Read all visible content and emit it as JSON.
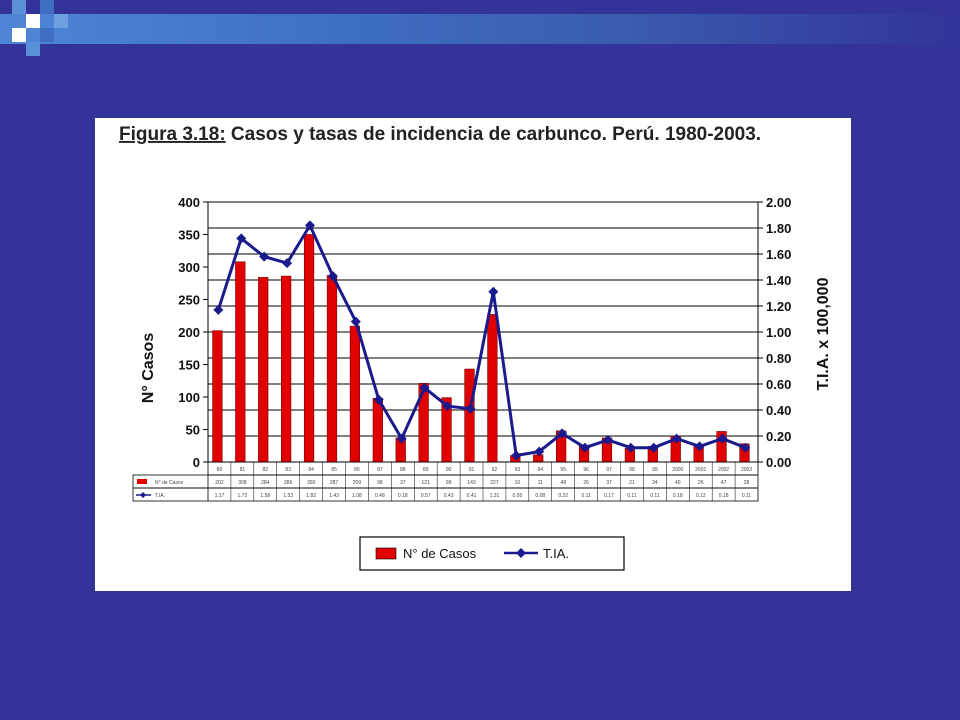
{
  "slide": {
    "background": "#333399",
    "accent": "#4f86d6"
  },
  "chart_data": {
    "type": "bar",
    "title_prefix": "Figura 3.18:",
    "title_main": " Casos y tasas de incidencia de carbunco. Perú. 1980-2003.",
    "categories": [
      "80",
      "81",
      "82",
      "83",
      "84",
      "85",
      "86",
      "87",
      "88",
      "89",
      "90",
      "91",
      "92",
      "93",
      "94",
      "95",
      "96",
      "97",
      "98",
      "99",
      "2000",
      "2001",
      "2002",
      "2003"
    ],
    "series": [
      {
        "name": "N° de Casos",
        "kind": "bar",
        "axis": "left",
        "color": "#e00000",
        "values": [
          202,
          308,
          284,
          286,
          350,
          287,
          209,
          98,
          37,
          121,
          99,
          143,
          227,
          10,
          11,
          48,
          26,
          37,
          21,
          24,
          40,
          26,
          47,
          28
        ]
      },
      {
        "name": "T.IA.",
        "kind": "line",
        "axis": "right",
        "color": "#1a1a8c",
        "values": [
          1.17,
          1.72,
          1.58,
          1.53,
          1.82,
          1.43,
          1.08,
          0.48,
          0.18,
          0.57,
          0.43,
          0.41,
          1.31,
          0.05,
          0.08,
          0.22,
          0.11,
          0.17,
          0.11,
          0.11,
          0.18,
          0.12,
          0.18,
          0.11
        ]
      }
    ],
    "table_rows": [
      {
        "label": "N° de Casos",
        "cells": [
          "202",
          "308",
          "284",
          "286",
          "350",
          "287",
          "209",
          "98",
          "37",
          "121",
          "99",
          "143",
          "227",
          "10",
          "11",
          "48",
          "26",
          "37",
          "21",
          "24",
          "40",
          "26",
          "47",
          "28"
        ]
      },
      {
        "label": "T.IA.",
        "cells": [
          "1.17",
          "1.72",
          "1.58",
          "1.53",
          "1.82",
          "1.43",
          "1.08",
          "0.48",
          "0.18",
          "0.57",
          "0.43",
          "0.41",
          "1.31",
          "0.05",
          "0.08",
          "0.22",
          "0.11",
          "0.17",
          "0.11",
          "0.11",
          "0.18",
          "0.12",
          "0.18",
          "0.11"
        ]
      }
    ],
    "ylabel_left": "N° Casos",
    "ylabel_right": "T.I.A. x 100,000",
    "ylim_left": [
      0,
      400
    ],
    "ylim_right": [
      0,
      2.0
    ],
    "yticks_left": [
      "0",
      "50",
      "100",
      "150",
      "200",
      "250",
      "300",
      "350",
      "400"
    ],
    "yticks_right": [
      "0.00",
      "0.20",
      "0.40",
      "0.60",
      "0.80",
      "1.00",
      "1.20",
      "1.40",
      "1.60",
      "1.80",
      "2.00"
    ],
    "grid": true,
    "legend_placement": "bottom",
    "legend": [
      {
        "label": "N° de Casos"
      },
      {
        "label": "T.IA."
      }
    ]
  }
}
